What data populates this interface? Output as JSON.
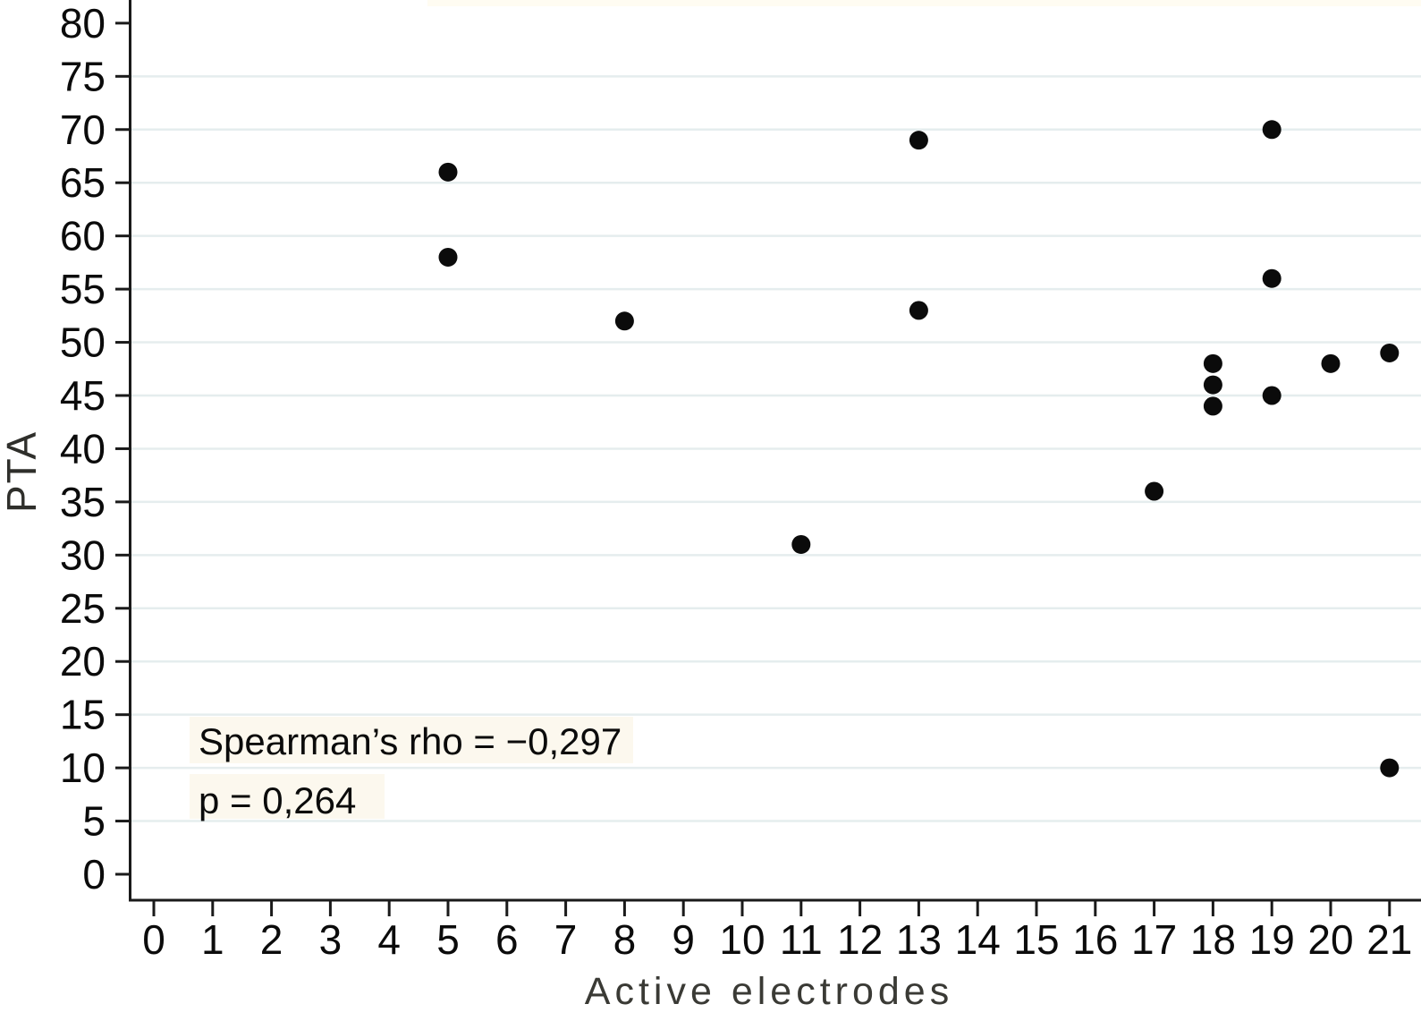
{
  "chart_data": {
    "type": "scatter",
    "title": "",
    "xlabel": "Active electrodes",
    "ylabel": "PTA",
    "x_ticks": [
      0,
      1,
      2,
      3,
      4,
      5,
      6,
      7,
      8,
      9,
      10,
      11,
      12,
      13,
      14,
      15,
      16,
      17,
      18,
      19,
      20,
      21
    ],
    "y_ticks": [
      0,
      5,
      10,
      15,
      20,
      25,
      30,
      35,
      40,
      45,
      50,
      55,
      60,
      65,
      70,
      75,
      80
    ],
    "xlim": [
      -0.45,
      21.55
    ],
    "ylim": [
      0,
      80
    ],
    "grid": "horizontal",
    "gridline_values": [
      5,
      10,
      15,
      20,
      25,
      30,
      35,
      40,
      45,
      50,
      55,
      60,
      65,
      70,
      75
    ],
    "legend": "none",
    "marker": "filled-circle",
    "points": [
      {
        "x": 5,
        "y": 66
      },
      {
        "x": 5,
        "y": 58
      },
      {
        "x": 8,
        "y": 52
      },
      {
        "x": 11,
        "y": 31
      },
      {
        "x": 13,
        "y": 69
      },
      {
        "x": 13,
        "y": 53
      },
      {
        "x": 17,
        "y": 36
      },
      {
        "x": 18,
        "y": 48
      },
      {
        "x": 18,
        "y": 46
      },
      {
        "x": 18,
        "y": 44
      },
      {
        "x": 19,
        "y": 70
      },
      {
        "x": 19,
        "y": 56
      },
      {
        "x": 19,
        "y": 45
      },
      {
        "x": 20,
        "y": 48
      },
      {
        "x": 21,
        "y": 49
      },
      {
        "x": 21,
        "y": 10
      }
    ],
    "annotations": [
      {
        "text": "Spearman’s rho = −0,297"
      },
      {
        "text": "p = 0,264"
      }
    ]
  },
  "colors": {
    "point": "#0b0b0b",
    "gridline": "#e5edee",
    "axis": "#1a1a1a",
    "tick_label": "#0b0b0b",
    "x_title": "#3a3a35",
    "y_title": "#2f2f2b",
    "annotation_bg": "#fcf8ee",
    "background": "#ffffff",
    "top_strip": "#fffcf2"
  }
}
